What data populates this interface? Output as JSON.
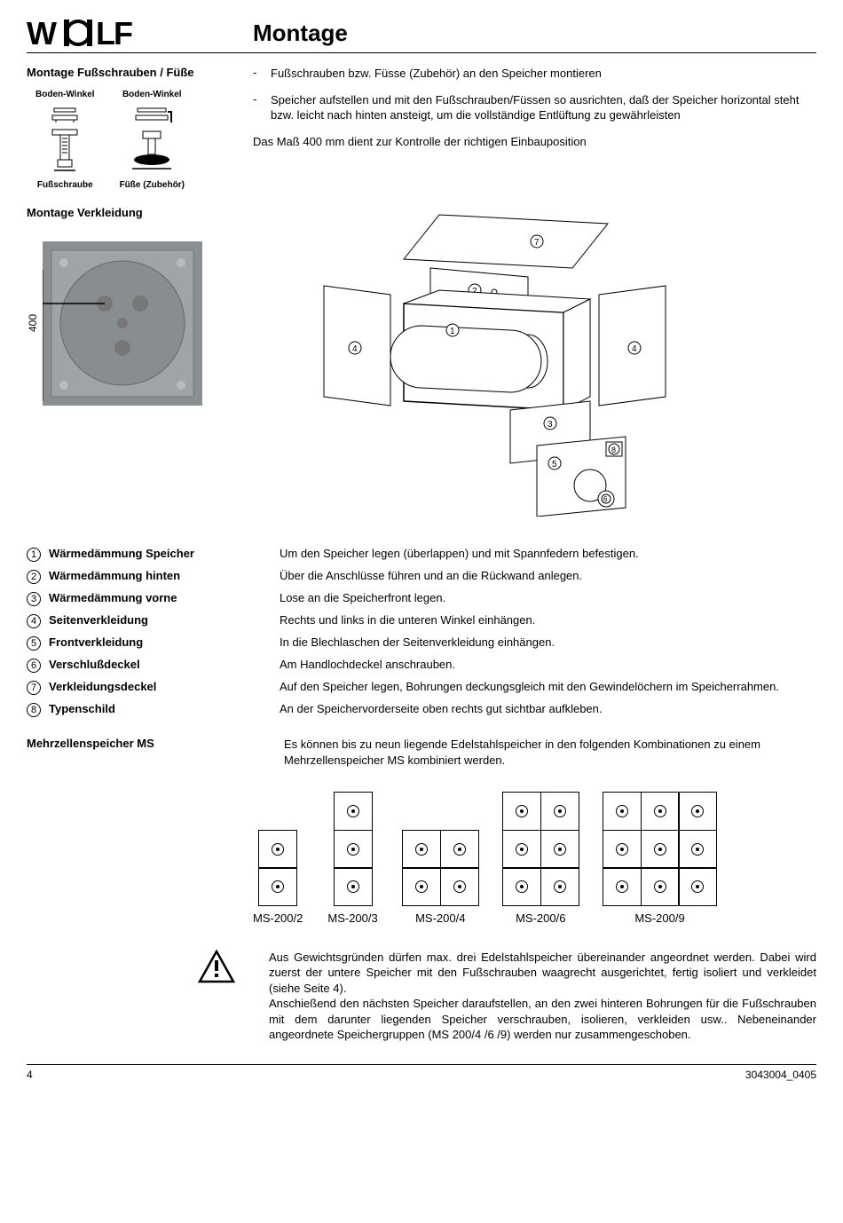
{
  "header": {
    "title": "Montage",
    "logo_text": "WOLF"
  },
  "section1": {
    "label": "Montage Fußschrauben / Füße",
    "bullets": [
      "Fußschrauben bzw. Füsse (Zubehör) an den Speicher montieren",
      "Speicher aufstellen und mit den Fußschrauben/Füssen so ausrichten, daß der Speicher horizontal steht bzw. leicht nach hinten ansteigt, um die vollständige Entlüftung zu gewährleisten"
    ],
    "note": "Das Maß 400 mm dient zur Kontrolle der richtigen Einbauposition",
    "diagram_labels": {
      "boden_winkel": "Boden-Winkel",
      "fussschraube": "Fußschraube",
      "fuesse": "Füße (Zubehör)"
    }
  },
  "section2": {
    "label": "Montage Verkleidung",
    "photo_dim": "400"
  },
  "parts": [
    {
      "num": "1",
      "name": "Wärmedämmung Speicher",
      "desc": "Um den Speicher legen (überlappen) und mit Spannfedern befestigen."
    },
    {
      "num": "2",
      "name": "Wärmedämmung hinten",
      "desc": "Über die Anschlüsse führen und an die Rückwand anlegen."
    },
    {
      "num": "3",
      "name": "Wärmedämmung vorne",
      "desc": "Lose an die Speicherfront legen."
    },
    {
      "num": "4",
      "name": "Seitenverkleidung",
      "desc": "Rechts und links in die unteren Winkel einhängen."
    },
    {
      "num": "5",
      "name": "Frontverkleidung",
      "desc": "In die Blechlaschen der Seitenverkleidung einhängen."
    },
    {
      "num": "6",
      "name": "Verschlußdeckel",
      "desc": "Am Handlochdeckel anschrauben."
    },
    {
      "num": "7",
      "name": "Verkleidungsdeckel",
      "desc": "Auf den Speicher legen, Bohrungen deckungsgleich mit den Gewindelöchern im Speicherrahmen."
    },
    {
      "num": "8",
      "name": "Typenschild",
      "desc": "An der Speichervorderseite oben rechts gut sichtbar aufkleben."
    }
  ],
  "ms": {
    "label": "Mehrzellenspeicher MS",
    "intro": "Es können bis zu neun liegende Edelstahlspeicher in den folgenden Kombinationen zu einem Mehrzellenspeicher MS kombiniert werden.",
    "configs": [
      {
        "name": "MS-200/2",
        "cols": 1,
        "rows": 2
      },
      {
        "name": "MS-200/3",
        "cols": 1,
        "rows": 3
      },
      {
        "name": "MS-200/4",
        "cols": 2,
        "rows": 2
      },
      {
        "name": "MS-200/6",
        "cols": 2,
        "rows": 3
      },
      {
        "name": "MS-200/9",
        "cols": 3,
        "rows": 3
      }
    ],
    "warning": "Aus Gewichtsgründen dürfen max. drei Edelstahlspeicher übereinander angeordnet werden. Dabei wird zuerst der untere Speicher mit den Fußschrauben waagrecht ausgerichtet, fertig isoliert und verkleidet (siehe Seite 4).\nAnschießend den nächsten Speicher daraufstellen, an den zwei hinteren Bohrungen für die Fußschrauben mit dem darunter liegenden Speicher verschrauben, isolieren, verkleiden usw.. Nebeneinander angeordnete Speichergruppen (MS 200/4 /6 /9) werden nur zusammengeschoben."
  },
  "footer": {
    "page": "4",
    "doc": "3043004_0405"
  }
}
